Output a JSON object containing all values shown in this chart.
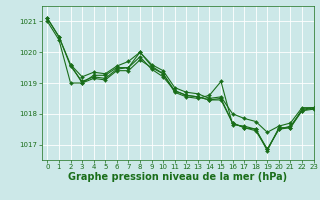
{
  "background_color": "#cce8e8",
  "grid_color": "#ffffff",
  "line_color": "#1a6e1a",
  "title": "Graphe pression niveau de la mer (hPa)",
  "xlim": [
    -0.5,
    23
  ],
  "ylim": [
    1016.5,
    1021.5
  ],
  "yticks": [
    1017,
    1018,
    1019,
    1020,
    1021
  ],
  "xticks": [
    0,
    1,
    2,
    3,
    4,
    5,
    6,
    7,
    8,
    9,
    10,
    11,
    12,
    13,
    14,
    15,
    16,
    17,
    18,
    19,
    20,
    21,
    22,
    23
  ],
  "series": [
    {
      "x": [
        0,
        1,
        2,
        3,
        4,
        5,
        6,
        7,
        8,
        9,
        10,
        11,
        12,
        13,
        14,
        15,
        16,
        17,
        18,
        19,
        20,
        21,
        22,
        23
      ],
      "y": [
        1021.1,
        1020.5,
        1019.6,
        1019.2,
        1019.35,
        1019.3,
        1019.55,
        1019.7,
        1020.0,
        1019.6,
        1019.4,
        1018.85,
        1018.7,
        1018.65,
        1018.5,
        1018.55,
        1018.0,
        1017.85,
        1017.75,
        1017.4,
        1017.6,
        1017.7,
        1018.2,
        1018.2
      ]
    },
    {
      "x": [
        0,
        1,
        2,
        3,
        4,
        5,
        6,
        7,
        8,
        9,
        10,
        11,
        12,
        13,
        14,
        15,
        16,
        17,
        18,
        19,
        20,
        21,
        22,
        23
      ],
      "y": [
        1021.1,
        1020.5,
        1019.55,
        1019.05,
        1019.2,
        1019.15,
        1019.45,
        1019.5,
        1019.85,
        1019.45,
        1019.2,
        1018.75,
        1018.6,
        1018.55,
        1018.45,
        1018.45,
        1017.7,
        1017.55,
        1017.5,
        1016.85,
        1017.5,
        1017.55,
        1018.1,
        1018.15
      ]
    },
    {
      "x": [
        0,
        1,
        2,
        3,
        4,
        5,
        6,
        7,
        8,
        9,
        10,
        11,
        12,
        13,
        14,
        15,
        16,
        17,
        18,
        19,
        20,
        21,
        22,
        23
      ],
      "y": [
        1021.0,
        1020.4,
        1019.0,
        1019.0,
        1019.25,
        1019.25,
        1019.5,
        1019.5,
        1020.0,
        1019.55,
        1019.3,
        1018.7,
        1018.55,
        1018.5,
        1018.6,
        1019.05,
        1017.65,
        1017.6,
        1017.5,
        1016.8,
        1017.55,
        1017.55,
        1018.15,
        1018.2
      ]
    },
    {
      "x": [
        2,
        3,
        4,
        5,
        6,
        7,
        8,
        9,
        10,
        11,
        12,
        13,
        14,
        15,
        16,
        17,
        18,
        19,
        20,
        21,
        22,
        23
      ],
      "y": [
        1019.6,
        1019.0,
        1019.15,
        1019.1,
        1019.4,
        1019.4,
        1019.75,
        1019.5,
        1019.3,
        1018.75,
        1018.6,
        1018.55,
        1018.45,
        1018.5,
        1017.7,
        1017.55,
        1017.45,
        1016.85,
        1017.5,
        1017.6,
        1018.1,
        1018.2
      ]
    }
  ],
  "title_fontsize": 7,
  "tick_fontsize": 5,
  "xlabel_fontsize": 7,
  "title_color": "#1a6e1a",
  "tick_color": "#1a6e1a",
  "marker": "D",
  "markersize": 2,
  "linewidth": 0.8
}
